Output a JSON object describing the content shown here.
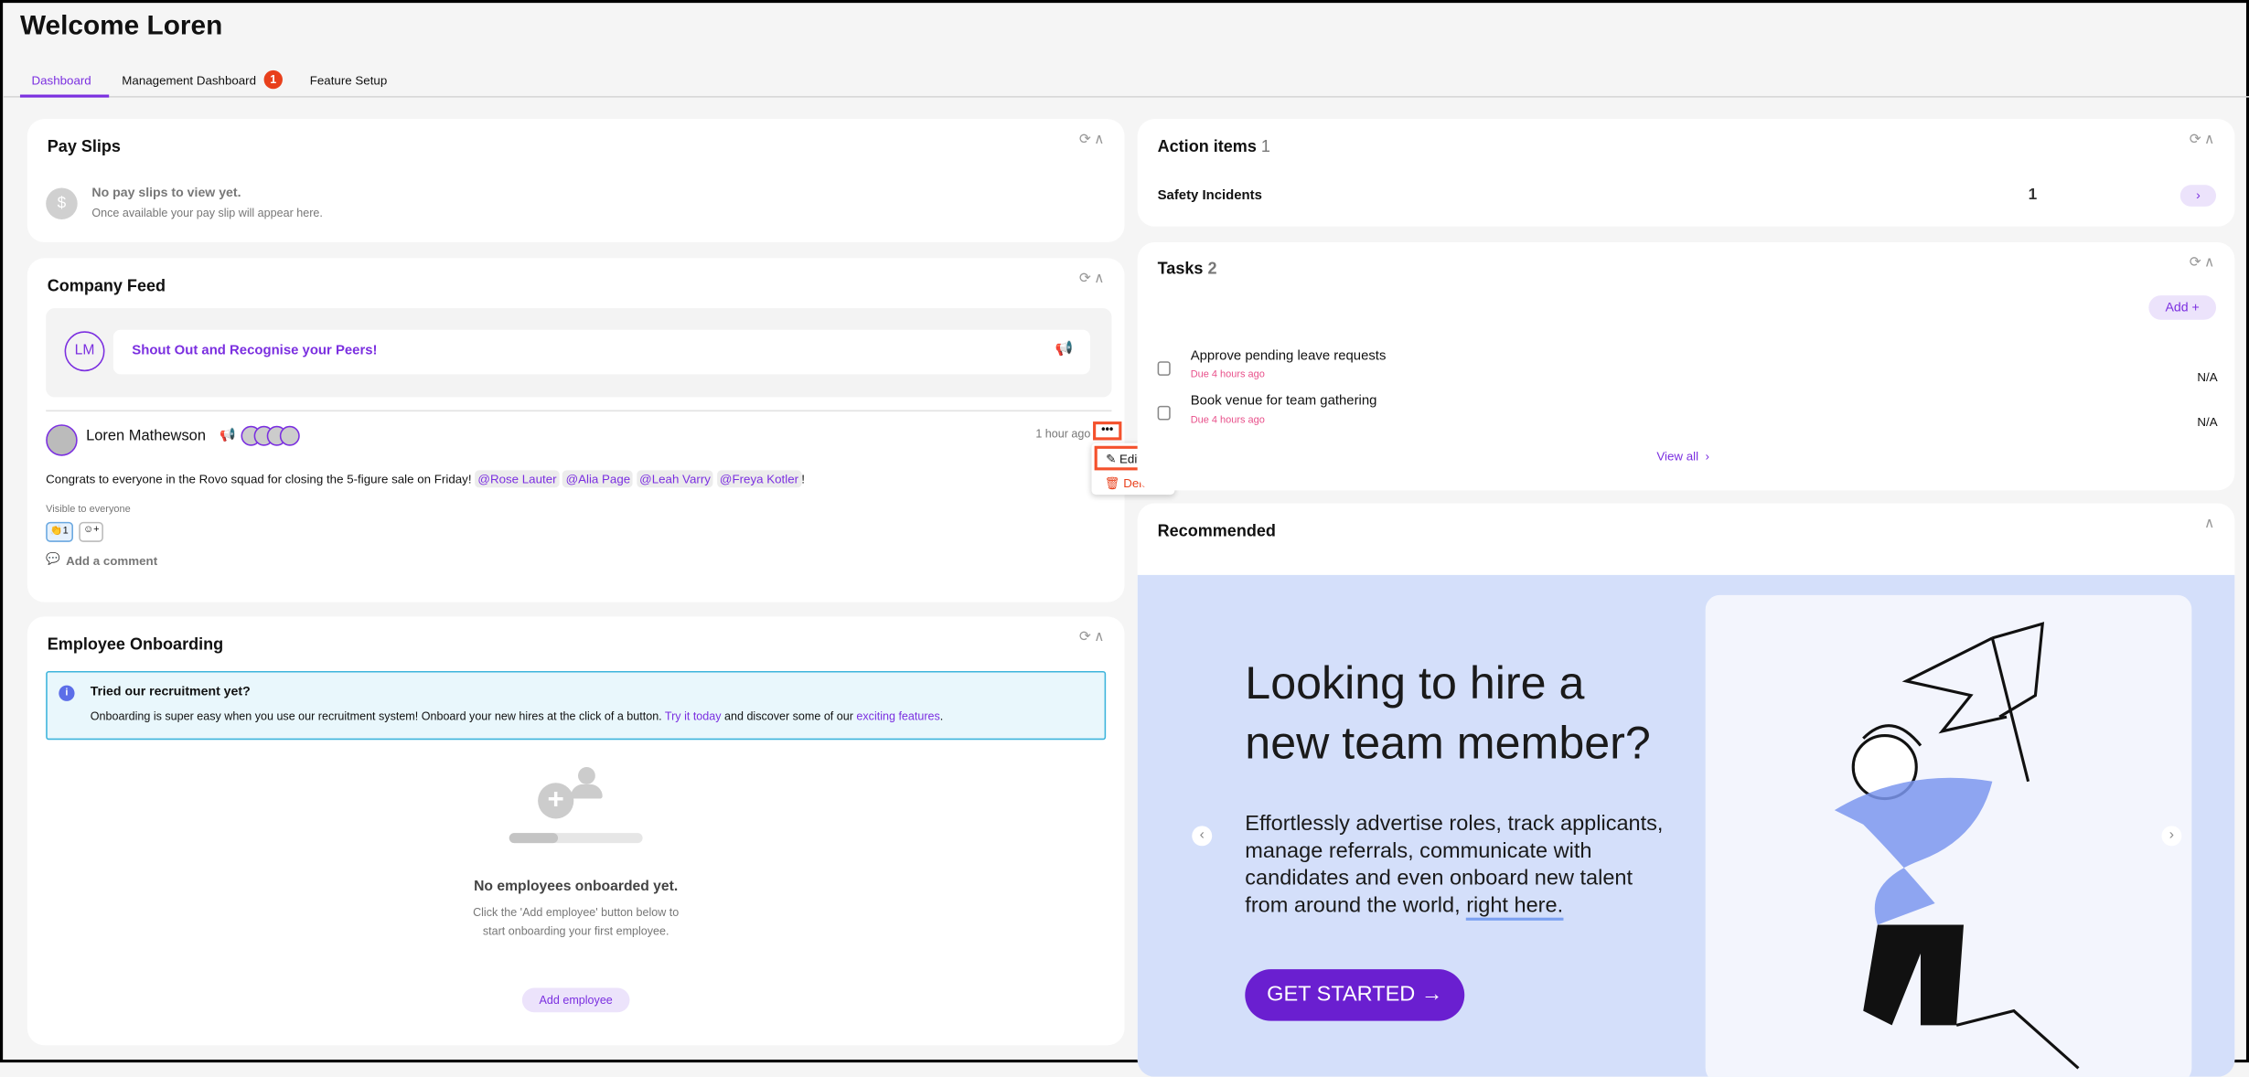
{
  "header": {
    "title": "Welcome Loren"
  },
  "tabs": [
    {
      "label": "Dashboard",
      "active": true
    },
    {
      "label": "Management Dashboard",
      "badge": "1"
    },
    {
      "label": "Feature Setup"
    }
  ],
  "pay_slips": {
    "title": "Pay Slips",
    "empty_title": "No pay slips to view yet.",
    "empty_text": "Once available your pay slip will appear here."
  },
  "feed": {
    "title": "Company Feed",
    "avatar_initials": "LM",
    "prompt": "Shout Out and Recognise your Peers!",
    "post": {
      "author": "Loren Mathewson",
      "time": "1 hour ago",
      "text": "Congrats to everyone in the Rovo squad for closing the 5-figure sale on Friday!",
      "mentions": [
        "@Rose Lauter",
        "@Alia Page",
        "@Leah Varry",
        "@Freya Kotler"
      ],
      "suffix": "!",
      "visibility": "Visible to everyone",
      "reaction_count": "1",
      "add_comment": "Add a comment"
    },
    "menu": {
      "edit": "Edit",
      "delete": "Delete"
    }
  },
  "onboarding": {
    "title": "Employee Onboarding",
    "info_title": "Tried our recruitment yet?",
    "info_text": "Onboarding is super easy when you use our recruitment system! Onboard your new hires at the click of a button.",
    "link1": "Try it today",
    "info_mid": "and discover some of our",
    "link2": "exciting features",
    "info_end": ".",
    "empty_title": "No employees onboarded yet.",
    "empty_line1": "Click the 'Add employee' button below to",
    "empty_line2": "start onboarding your first employee.",
    "add_button": "Add employee"
  },
  "action_items": {
    "title": "Action items",
    "count": "1",
    "rows": [
      {
        "label": "Safety Incidents",
        "value": "1"
      }
    ]
  },
  "tasks": {
    "title": "Tasks",
    "count": "2",
    "add_label": "Add",
    "items": [
      {
        "title": "Approve pending leave requests",
        "due": "Due 4 hours ago",
        "assignee": "N/A"
      },
      {
        "title": "Book venue for team gathering",
        "due": "Due 4 hours ago",
        "assignee": "N/A"
      }
    ],
    "view_all": "View all"
  },
  "recommended": {
    "title": "Recommended",
    "headline1": "Looking to hire a",
    "headline2": "new team member?",
    "body1": "Effortlessly advertise roles, track applicants,",
    "body2": "manage referrals, communicate with",
    "body3": "candidates and even onboard new talent",
    "body4": "from around the world,",
    "body_link": "right here.",
    "cta": "GET STARTED →"
  },
  "colors": {
    "accent": "#7b2fe0",
    "badge": "#e8401c",
    "highlight": "#f4512c",
    "banner": "#d4dffa",
    "due": "#e8508a"
  }
}
